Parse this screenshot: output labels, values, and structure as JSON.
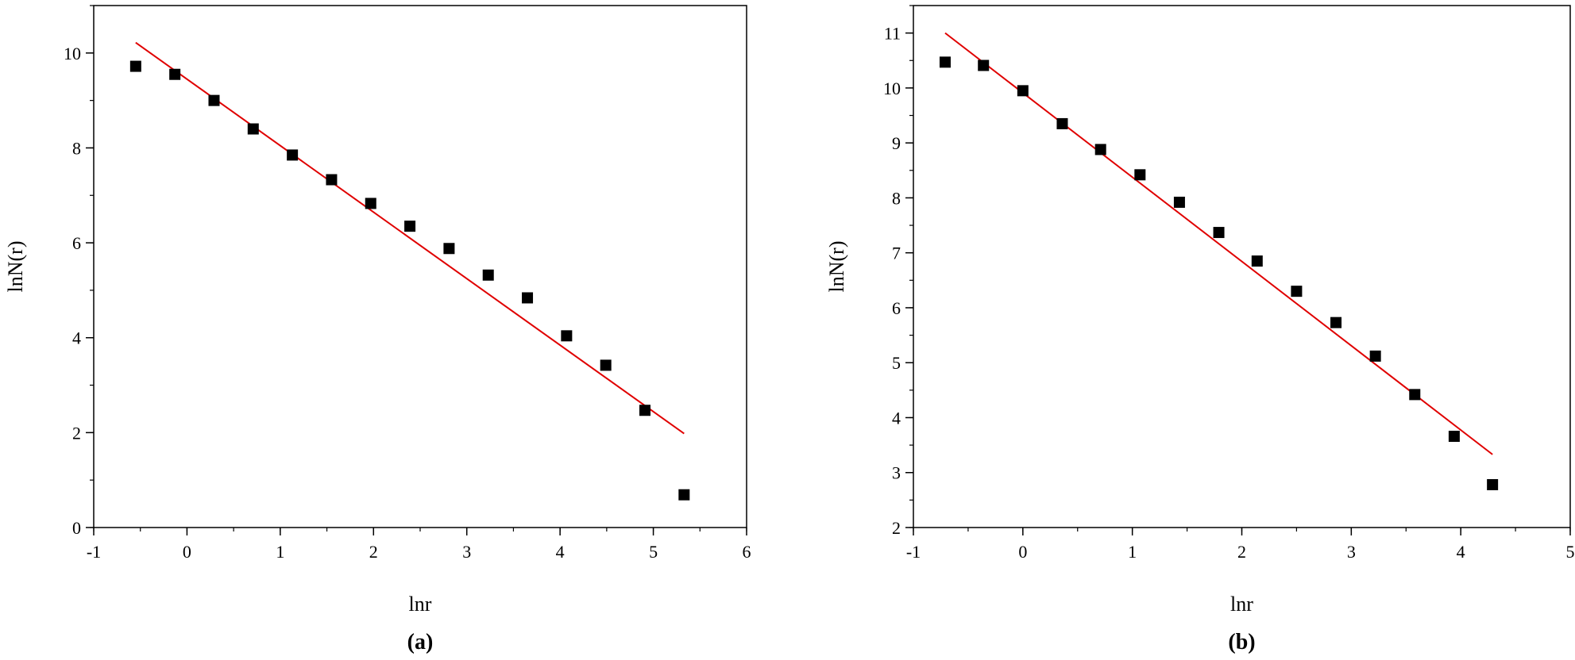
{
  "chart_data": [
    {
      "type": "scatter",
      "panel_label": "(a)",
      "xlabel": "lnr",
      "ylabel": "lnN(r)",
      "xlim": [
        -1,
        6
      ],
      "ylim": [
        0,
        11
      ],
      "xticks": [
        -1,
        0,
        1,
        2,
        3,
        4,
        5,
        6
      ],
      "yticks": [
        0,
        2,
        4,
        6,
        8,
        10
      ],
      "x_minor_step": 0.5,
      "y_minor_step": 1,
      "grid": false,
      "marker_color": "#000000",
      "fit_color": "#e00000",
      "series": [
        {
          "x": [
            -0.55,
            -0.13,
            0.29,
            0.71,
            1.13,
            1.55,
            1.97,
            2.39,
            2.81,
            3.23,
            3.65,
            4.07,
            4.49,
            4.91,
            5.33
          ],
          "y": [
            9.72,
            9.55,
            9.0,
            8.4,
            7.85,
            7.33,
            6.83,
            6.35,
            5.88,
            5.32,
            4.84,
            4.04,
            3.42,
            2.47,
            0.69
          ]
        }
      ],
      "fit_line": {
        "x": [
          -0.55,
          5.33
        ],
        "y": [
          10.22,
          1.98
        ]
      }
    },
    {
      "type": "scatter",
      "panel_label": "(b)",
      "xlabel": "lnr",
      "ylabel": "lnN(r)",
      "xlim": [
        -1,
        5
      ],
      "ylim": [
        2,
        11.5
      ],
      "xticks": [
        -1,
        0,
        1,
        2,
        3,
        4,
        5
      ],
      "yticks": [
        2,
        3,
        4,
        5,
        6,
        7,
        8,
        9,
        10,
        11
      ],
      "x_minor_step": 0.5,
      "y_minor_step": 0.5,
      "grid": false,
      "marker_color": "#000000",
      "fit_color": "#e00000",
      "series": [
        {
          "x": [
            -0.71,
            -0.36,
            0.0,
            0.36,
            0.71,
            1.07,
            1.43,
            1.79,
            2.14,
            2.5,
            2.86,
            3.22,
            3.58,
            3.94,
            4.29
          ],
          "y": [
            10.47,
            10.41,
            9.95,
            9.35,
            8.88,
            8.42,
            7.92,
            7.37,
            6.85,
            6.3,
            5.73,
            5.12,
            4.42,
            3.66,
            2.78
          ]
        }
      ],
      "fit_line": {
        "x": [
          -0.71,
          4.29
        ],
        "y": [
          11.0,
          3.33
        ]
      }
    }
  ]
}
